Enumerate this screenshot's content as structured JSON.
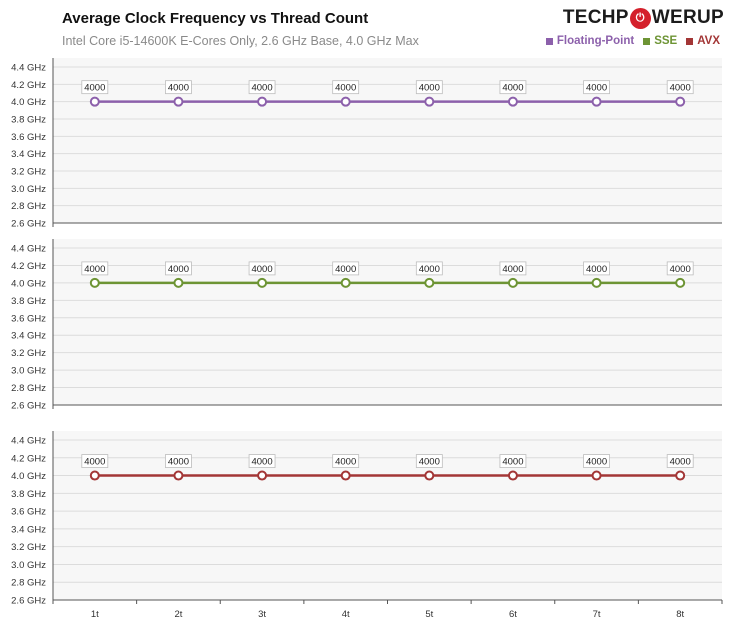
{
  "header": {
    "title": "Average Clock Frequency vs Thread Count",
    "subtitle": "Intel Core i5-14600K E-Cores Only, 2.6 GHz Base, 4.0 GHz Max"
  },
  "logo": {
    "icon": "power-icon",
    "text_left": "TECHP",
    "text_right": "WERUP"
  },
  "legend": [
    {
      "label": "Floating-Point",
      "color": "#8c60ab"
    },
    {
      "label": "SSE",
      "color": "#6d9434"
    },
    {
      "label": "AVX",
      "color": "#a33636"
    }
  ],
  "chart_data": {
    "type": "line",
    "categories": [
      "1t",
      "2t",
      "3t",
      "4t",
      "5t",
      "6t",
      "7t",
      "8t"
    ],
    "y_tick_labels": [
      "2.6 GHz",
      "2.8 GHz",
      "3.0 GHz",
      "3.2 GHz",
      "3.4 GHz",
      "3.6 GHz",
      "3.8 GHz",
      "4.0 GHz",
      "4.2 GHz",
      "4.4 GHz"
    ],
    "ylim": [
      2600,
      4400
    ],
    "grid": true,
    "legend_position": "top-right",
    "panels": [
      {
        "series": "Floating-Point",
        "color": "#8c60ab",
        "values": [
          4000,
          4000,
          4000,
          4000,
          4000,
          4000,
          4000,
          4000
        ]
      },
      {
        "series": "SSE",
        "color": "#6d9434",
        "values": [
          4000,
          4000,
          4000,
          4000,
          4000,
          4000,
          4000,
          4000
        ]
      },
      {
        "series": "AVX",
        "color": "#a33636",
        "values": [
          4000,
          4000,
          4000,
          4000,
          4000,
          4000,
          4000,
          4000
        ]
      }
    ]
  }
}
